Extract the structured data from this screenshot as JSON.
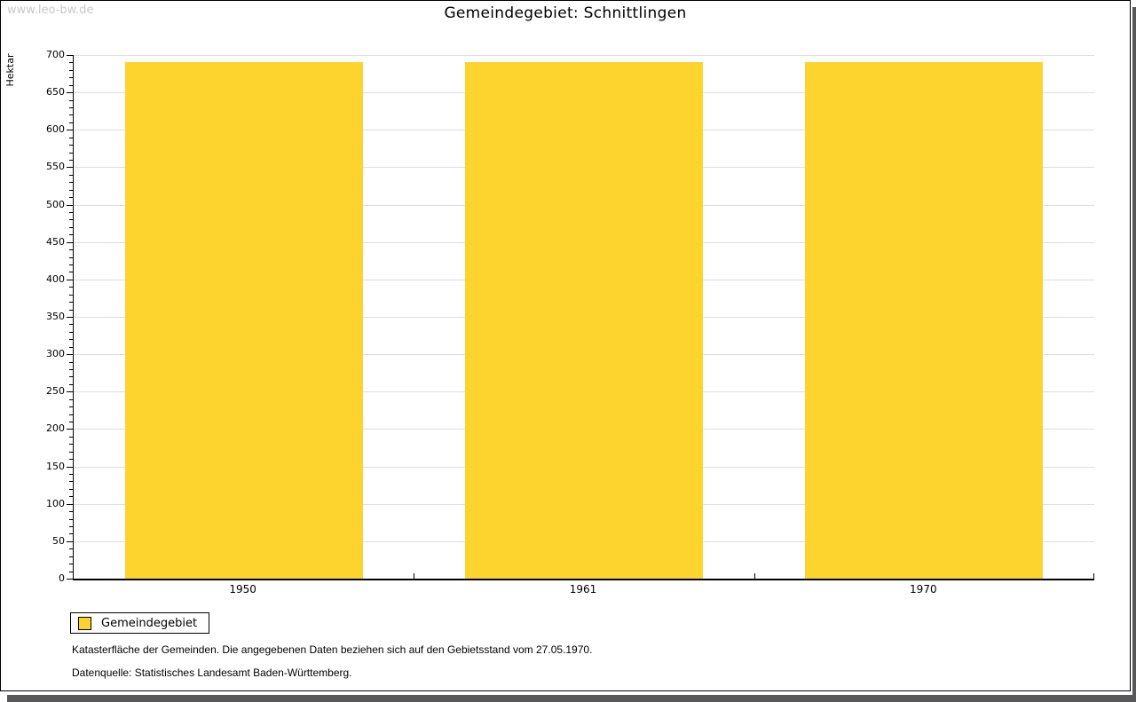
{
  "watermark": "www.leo-bw.de",
  "header": {
    "title": "Gemeindegebiet: Schnittlingen"
  },
  "chart_data": {
    "type": "bar",
    "title": "Gemeindegebiet: Schnittlingen",
    "categories": [
      "1950",
      "1961",
      "1970"
    ],
    "series": [
      {
        "name": "Gemeindegebiet",
        "color": "#FCD42D",
        "values": [
          691,
          691,
          691
        ]
      }
    ],
    "ylabel": "Hektar",
    "ylim": [
      0,
      700
    ],
    "ytick_step": 50,
    "yminor_step": 10,
    "grid": true,
    "legend_position": "bottom-left"
  },
  "legend": {
    "items": [
      {
        "label": "Gemeindegebiet",
        "color": "#FCD42D"
      }
    ]
  },
  "notes": {
    "line1": "Katasterfläche der Gemeinden. Die angegebenen Daten beziehen sich auf den Gebietsstand vom 27.05.1970.",
    "line2": "Datenquelle: Statistisches Landesamt Baden-Württemberg."
  },
  "colors": {
    "bar": "#FCD42D",
    "grid": "#DEDEDE",
    "axis": "#000000",
    "frame_shadow": "#58585A",
    "watermark": "#C9C9C9"
  }
}
